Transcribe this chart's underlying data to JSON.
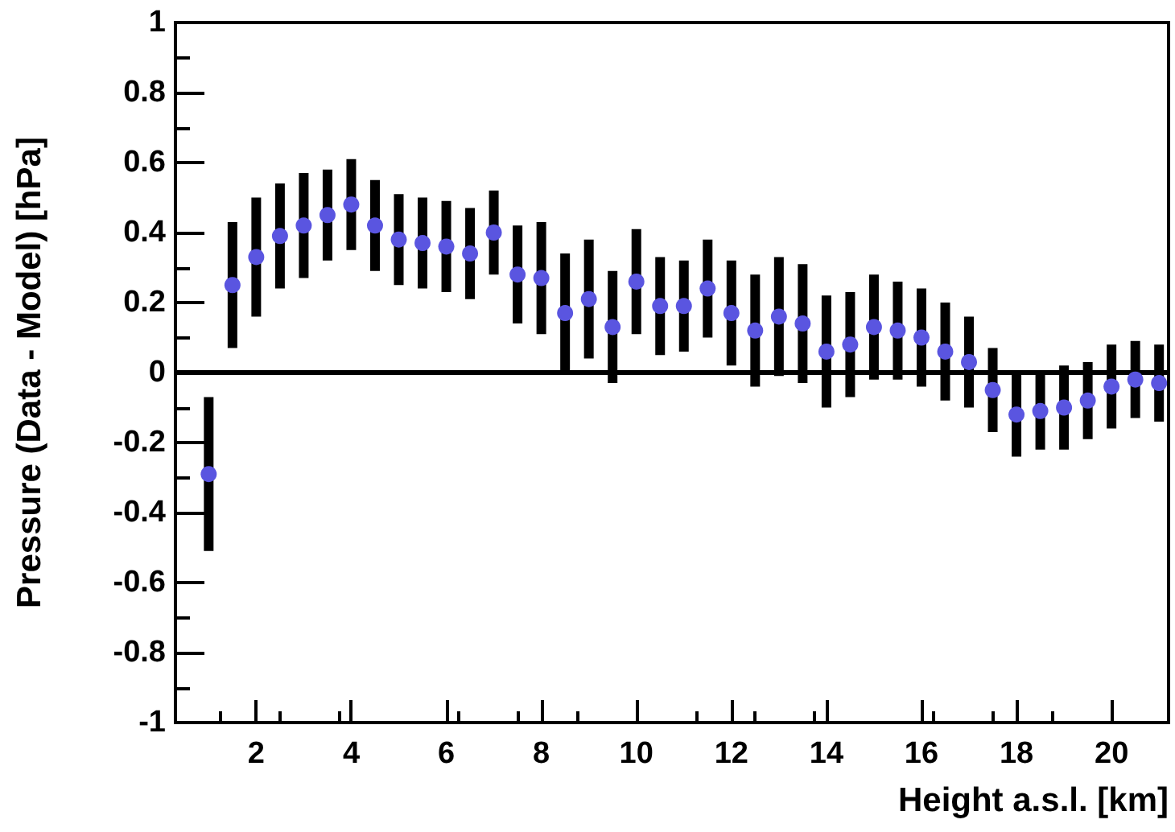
{
  "chart_data": {
    "type": "scatter",
    "xlabel": "Height a.s.l. [km]",
    "ylabel": "Pressure (Data - Model) [hPa]",
    "x": [
      1,
      1.5,
      2,
      2.5,
      3,
      3.5,
      4,
      4.5,
      5,
      5.5,
      6,
      6.5,
      7,
      7.5,
      8,
      8.5,
      9,
      9.5,
      10,
      10.5,
      11,
      11.5,
      12,
      12.5,
      13,
      13.5,
      14,
      14.5,
      15,
      15.5,
      16,
      16.5,
      17,
      17.5,
      18,
      18.5,
      19,
      19.5,
      20,
      20.5,
      21
    ],
    "series": [
      {
        "color": "#5a55e0",
        "values": [
          -0.29,
          0.25,
          0.33,
          0.39,
          0.42,
          0.45,
          0.48,
          0.42,
          0.38,
          0.37,
          0.36,
          0.34,
          0.4,
          0.28,
          0.27,
          0.17,
          0.21,
          0.13,
          0.26,
          0.19,
          0.19,
          0.24,
          0.17,
          0.12,
          0.16,
          0.14,
          0.06,
          0.08,
          0.13,
          0.12,
          0.1,
          0.06,
          0.03,
          -0.05,
          -0.12,
          -0.11,
          -0.1,
          -0.08,
          -0.04,
          -0.02,
          -0.03
        ],
        "errors": [
          0.22,
          0.18,
          0.17,
          0.15,
          0.15,
          0.13,
          0.13,
          0.13,
          0.13,
          0.13,
          0.13,
          0.13,
          0.12,
          0.14,
          0.16,
          0.17,
          0.17,
          0.16,
          0.15,
          0.14,
          0.13,
          0.14,
          0.15,
          0.16,
          0.17,
          0.17,
          0.16,
          0.15,
          0.15,
          0.14,
          0.14,
          0.14,
          0.13,
          0.12,
          0.12,
          0.11,
          0.12,
          0.11,
          0.12,
          0.11,
          0.11
        ]
      }
    ],
    "xlim": [
      0.3,
      21.2
    ],
    "xticks": [
      2,
      4,
      6,
      8,
      10,
      12,
      14,
      16,
      18,
      20
    ],
    "ylim": [
      -1,
      1
    ],
    "yticks": [
      -1,
      -0.8,
      -0.6,
      -0.4,
      -0.2,
      0,
      0.2,
      0.4,
      0.6,
      0.8,
      1
    ],
    "ref_lines": [
      {
        "axis": "y",
        "value": 0,
        "color": "#000000"
      }
    ],
    "marker": "circle",
    "grid": false
  }
}
